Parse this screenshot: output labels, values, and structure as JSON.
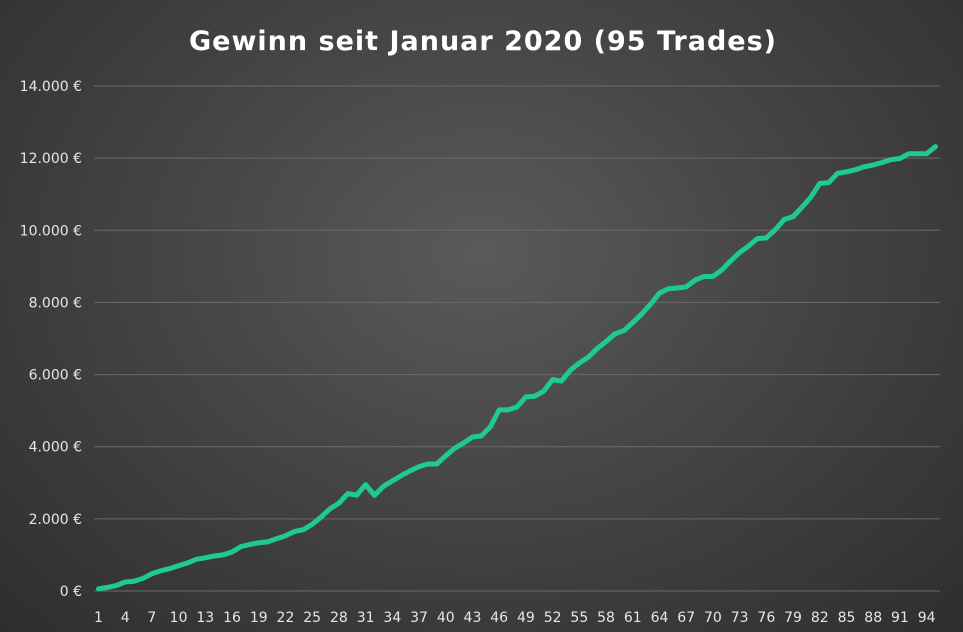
{
  "chart_data": {
    "type": "line",
    "title": "Gewinn seit Januar 2020 (95 Trades)",
    "xlabel": "",
    "ylabel": "",
    "ylim": [
      0,
      14000
    ],
    "yticks": [
      0,
      2000,
      4000,
      6000,
      8000,
      10000,
      12000,
      14000
    ],
    "ytick_labels": [
      "0 €",
      "2.000 €",
      "4.000 €",
      "6.000 €",
      "8.000 €",
      "10.000 €",
      "12.000 €",
      "14.000 €"
    ],
    "xtick_labels": [
      "1",
      "4",
      "7",
      "10",
      "13",
      "16",
      "19",
      "22",
      "25",
      "28",
      "31",
      "34",
      "37",
      "40",
      "43",
      "46",
      "49",
      "52",
      "55",
      "58",
      "61",
      "64",
      "67",
      "70",
      "73",
      "76",
      "79",
      "82",
      "85",
      "88",
      "91",
      "94"
    ],
    "grid": true,
    "legend": "none",
    "color": "#1ec995",
    "series": [
      {
        "x": [
          1,
          2,
          3,
          4,
          5,
          6,
          7,
          8,
          9,
          10,
          11,
          12,
          13,
          14,
          15,
          16,
          17,
          18,
          19,
          20,
          21,
          22,
          23,
          24,
          25,
          26,
          27,
          28,
          29,
          30,
          31,
          32,
          33,
          34,
          35,
          36,
          37,
          38,
          39,
          40,
          41,
          42,
          43,
          44,
          45,
          46,
          47,
          48,
          49,
          50,
          51,
          52,
          53,
          54,
          55,
          56,
          57,
          58,
          59,
          60,
          61,
          62,
          63,
          64,
          65,
          66,
          67,
          68,
          69,
          70,
          71,
          72,
          73,
          74,
          75,
          76,
          77,
          78,
          79,
          80,
          81,
          82,
          83,
          84,
          85,
          86,
          87,
          88,
          89,
          90,
          91,
          92,
          93,
          94,
          95
        ],
        "values": [
          60,
          100,
          150,
          250,
          270,
          350,
          480,
          560,
          620,
          700,
          780,
          880,
          920,
          970,
          1000,
          1080,
          1230,
          1290,
          1340,
          1360,
          1450,
          1530,
          1650,
          1700,
          1850,
          2050,
          2280,
          2430,
          2700,
          2660,
          2950,
          2650,
          2900,
          3050,
          3200,
          3330,
          3450,
          3520,
          3520,
          3750,
          3960,
          4100,
          4270,
          4300,
          4550,
          5020,
          5020,
          5100,
          5380,
          5400,
          5540,
          5860,
          5820,
          6120,
          6320,
          6480,
          6720,
          6920,
          7130,
          7220,
          7440,
          7680,
          7950,
          8260,
          8380,
          8400,
          8430,
          8620,
          8720,
          8720,
          8900,
          9150,
          9380,
          9560,
          9770,
          9790,
          10020,
          10300,
          10380,
          10640,
          10920,
          11300,
          11320,
          11580,
          11620,
          11680,
          11760,
          11810,
          11880,
          11960,
          11990,
          12120,
          12120,
          12120,
          12320
        ]
      }
    ]
  }
}
